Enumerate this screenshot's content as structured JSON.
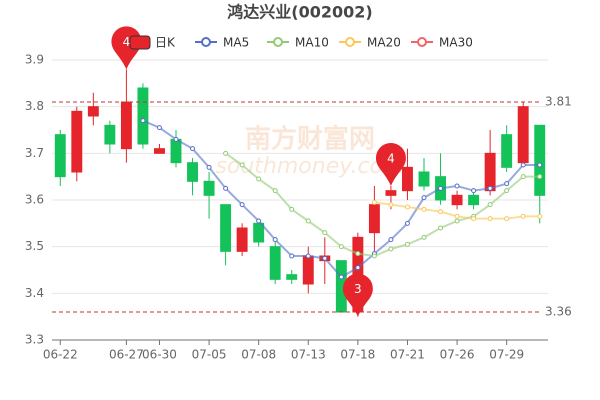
{
  "chart_data": {
    "type": "candlestick",
    "title": "鸿达兴业(002002)",
    "watermark": "南方财富网",
    "watermark_sub": "southmoney.com",
    "categories": [
      "06-22",
      null,
      null,
      null,
      "06-27",
      null,
      "06-30",
      null,
      null,
      "07-05",
      null,
      null,
      "07-08",
      null,
      null,
      "07-13",
      null,
      null,
      "07-18",
      null,
      null,
      "07-21",
      null,
      null,
      "07-26",
      null,
      null,
      "07-29",
      null,
      null
    ],
    "candles": {
      "name": "日K",
      "up_color": "#e5252b",
      "down_color": "#14c25a",
      "open": [
        3.74,
        3.66,
        3.78,
        3.76,
        3.71,
        3.84,
        3.7,
        3.73,
        3.68,
        3.64,
        3.59,
        3.49,
        3.55,
        3.5,
        3.44,
        3.42,
        3.47,
        3.47,
        3.36,
        3.53,
        3.61,
        3.62,
        3.66,
        3.65,
        3.59,
        3.61,
        3.62,
        3.74,
        3.68,
        3.76
      ],
      "close": [
        3.65,
        3.79,
        3.8,
        3.72,
        3.81,
        3.72,
        3.71,
        3.68,
        3.64,
        3.61,
        3.49,
        3.54,
        3.51,
        3.43,
        3.43,
        3.48,
        3.48,
        3.36,
        3.52,
        3.59,
        3.62,
        3.67,
        3.63,
        3.6,
        3.61,
        3.59,
        3.7,
        3.67,
        3.8,
        3.61
      ],
      "low": [
        3.63,
        3.64,
        3.76,
        3.7,
        3.68,
        3.71,
        3.7,
        3.67,
        3.61,
        3.56,
        3.46,
        3.48,
        3.5,
        3.42,
        3.42,
        3.4,
        3.42,
        3.36,
        3.35,
        3.49,
        3.58,
        3.6,
        3.62,
        3.59,
        3.58,
        3.58,
        3.61,
        3.66,
        3.67,
        3.55
      ],
      "high": [
        3.75,
        3.8,
        3.83,
        3.77,
        3.88,
        3.85,
        3.72,
        3.75,
        3.69,
        3.66,
        3.59,
        3.55,
        3.56,
        3.51,
        3.45,
        3.5,
        3.52,
        3.47,
        3.53,
        3.63,
        3.63,
        3.71,
        3.69,
        3.7,
        3.62,
        3.62,
        3.75,
        3.76,
        3.81,
        3.76
      ]
    },
    "series": [
      {
        "name": "MA5",
        "color": "#5470c6",
        "values": [
          null,
          null,
          null,
          null,
          null,
          3.77,
          3.755,
          3.73,
          3.71,
          3.67,
          3.625,
          3.59,
          3.555,
          3.515,
          3.48,
          3.48,
          3.475,
          3.435,
          3.455,
          3.485,
          3.515,
          3.55,
          3.605,
          3.625,
          3.63,
          3.62,
          3.625,
          3.635,
          3.675,
          3.675
        ]
      },
      {
        "name": "MA10",
        "color": "#91cc75",
        "values": [
          null,
          null,
          null,
          null,
          null,
          null,
          null,
          null,
          null,
          null,
          3.7,
          3.675,
          3.645,
          3.62,
          3.58,
          3.555,
          3.53,
          3.5,
          3.485,
          3.48,
          3.495,
          3.505,
          3.52,
          3.54,
          3.555,
          3.565,
          3.59,
          3.62,
          3.65,
          3.65
        ]
      },
      {
        "name": "MA20",
        "color": "#fac858",
        "values": [
          null,
          null,
          null,
          null,
          null,
          null,
          null,
          null,
          null,
          null,
          null,
          null,
          null,
          null,
          null,
          null,
          null,
          null,
          null,
          3.595,
          3.59,
          3.585,
          3.58,
          3.575,
          3.565,
          3.56,
          3.56,
          3.56,
          3.565,
          3.565
        ]
      },
      {
        "name": "MA30",
        "color": "#ee6666",
        "values": [
          null,
          null,
          null,
          null,
          null,
          null,
          null,
          null,
          null,
          null,
          null,
          null,
          null,
          null,
          null,
          null,
          null,
          null,
          null,
          null,
          null,
          null,
          null,
          null,
          null,
          null,
          null,
          null,
          null,
          null
        ]
      }
    ],
    "pins": [
      {
        "label": "4",
        "category_index": 4,
        "value": 3.88
      },
      {
        "label": "4",
        "category_index": 20,
        "value": 3.63
      },
      {
        "label": "3",
        "category_index": 18,
        "value": 3.35
      }
    ],
    "mark_lines": [
      3.81,
      3.36
    ],
    "mark_line_color": "#c23531",
    "ylim": [
      3.3,
      3.9
    ],
    "yticks": [
      3.3,
      3.4,
      3.5,
      3.6,
      3.7,
      3.8,
      3.9
    ],
    "grid": true
  }
}
